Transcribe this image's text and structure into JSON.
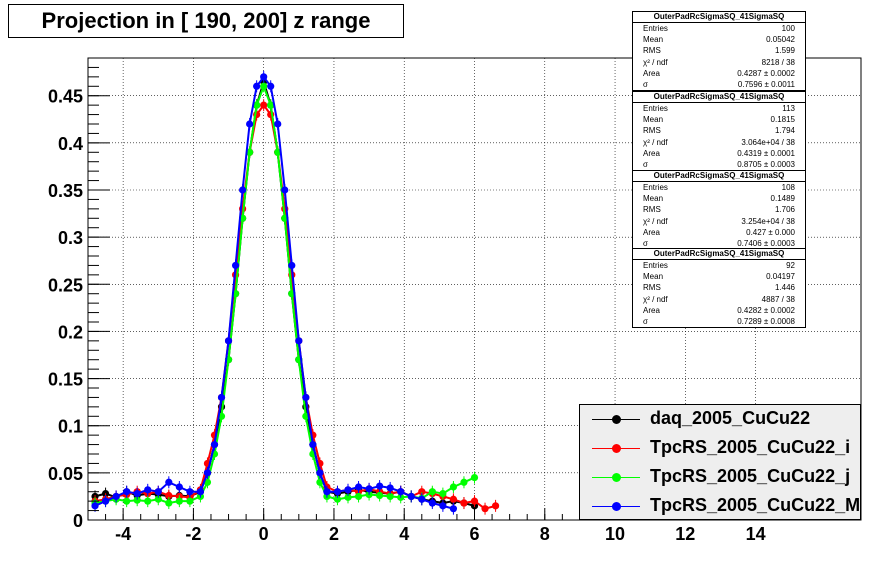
{
  "title": "Projection in [ 190, 200] z range",
  "stats": [
    {
      "name": "OuterPadRcSigmaSQ_41SigmaSQ",
      "rows": [
        [
          "Entries",
          "100"
        ],
        [
          "Mean",
          "0.05042"
        ],
        [
          "RMS",
          "1.599"
        ],
        [
          "χ² / ndf",
          "8218 / 38"
        ],
        [
          "Area",
          "0.4287 ± 0.0002"
        ],
        [
          "σ",
          "0.7596 ± 0.0011"
        ]
      ]
    },
    {
      "name": "OuterPadRcSigmaSQ_41SigmaSQ",
      "rows": [
        [
          "Entries",
          "113"
        ],
        [
          "Mean",
          "0.1815"
        ],
        [
          "RMS",
          "1.794"
        ],
        [
          "χ² / ndf",
          "3.064e+04 / 38"
        ],
        [
          "Area",
          "0.4319 ± 0.0001"
        ],
        [
          "σ",
          "0.8705 ± 0.0003"
        ]
      ]
    },
    {
      "name": "OuterPadRcSigmaSQ_41SigmaSQ",
      "rows": [
        [
          "Entries",
          "108"
        ],
        [
          "Mean",
          "0.1489"
        ],
        [
          "RMS",
          "1.706"
        ],
        [
          "χ² / ndf",
          "3.254e+04 / 38"
        ],
        [
          "Area",
          "0.427 ± 0.000"
        ],
        [
          "σ",
          "0.7406 ± 0.0003"
        ]
      ]
    },
    {
      "name": "OuterPadRcSigmaSQ_41SigmaSQ",
      "rows": [
        [
          "Entries",
          "92"
        ],
        [
          "Mean",
          "0.04197"
        ],
        [
          "RMS",
          "1.446"
        ],
        [
          "χ² / ndf",
          "4887 / 38"
        ],
        [
          "Area",
          "0.4282 ± 0.0002"
        ],
        [
          "σ",
          "0.7289 ± 0.0008"
        ]
      ]
    }
  ],
  "chart_data": {
    "type": "scatter",
    "xlim": [
      -5,
      17
    ],
    "ylim": [
      0,
      0.49
    ],
    "x_ticks": [
      -4,
      -2,
      0,
      2,
      4,
      6,
      8,
      10,
      12,
      14
    ],
    "x_tick_labels": [
      "-4",
      "-2",
      "0",
      "2",
      "4",
      "6",
      "8",
      "10",
      "12",
      "14"
    ],
    "y_ticks": [
      0,
      0.05,
      0.1,
      0.15,
      0.2,
      0.25,
      0.3,
      0.35,
      0.4,
      0.45
    ],
    "y_tick_labels": [
      "0",
      "0.05",
      "0.1",
      "0.15",
      "0.2",
      "0.25",
      "0.3",
      "0.35",
      "0.4",
      "0.45"
    ],
    "grid": true,
    "legend_position": "bottom-right",
    "series": [
      {
        "name": "daq_2005_CuCu22",
        "color": "#000000",
        "x": [
          -4.8,
          -4.5,
          -4.2,
          -3.9,
          -3.6,
          -3.3,
          -3.0,
          -2.7,
          -2.4,
          -2.1,
          -1.8,
          -1.6,
          -1.4,
          -1.2,
          -1.0,
          -0.8,
          -0.6,
          -0.4,
          -0.2,
          0.0,
          0.2,
          0.4,
          0.6,
          0.8,
          1.0,
          1.2,
          1.4,
          1.6,
          1.8,
          2.1,
          2.4,
          2.7,
          3.0,
          3.3,
          3.6,
          3.9,
          4.2,
          4.5,
          4.8,
          5.1,
          5.4,
          5.7,
          6.0
        ],
        "y": [
          0.025,
          0.028,
          0.024,
          0.03,
          0.026,
          0.028,
          0.027,
          0.025,
          0.026,
          0.025,
          0.03,
          0.05,
          0.08,
          0.12,
          0.17,
          0.24,
          0.32,
          0.39,
          0.44,
          0.465,
          0.44,
          0.39,
          0.32,
          0.24,
          0.17,
          0.12,
          0.08,
          0.05,
          0.03,
          0.028,
          0.03,
          0.032,
          0.03,
          0.029,
          0.028,
          0.03,
          0.025,
          0.022,
          0.02,
          0.018,
          0.02,
          0.018,
          0.015
        ]
      },
      {
        "name": "TpcRS_2005_CuCu22_i",
        "color": "#ff0000",
        "x": [
          -4.8,
          -4.5,
          -4.2,
          -3.9,
          -3.6,
          -3.3,
          -3.0,
          -2.7,
          -2.4,
          -2.1,
          -1.8,
          -1.6,
          -1.4,
          -1.2,
          -1.0,
          -0.8,
          -0.6,
          -0.4,
          -0.2,
          0.0,
          0.2,
          0.4,
          0.6,
          0.8,
          1.0,
          1.2,
          1.4,
          1.6,
          1.8,
          2.1,
          2.4,
          2.7,
          3.0,
          3.3,
          3.6,
          3.9,
          4.2,
          4.5,
          4.8,
          5.1,
          5.4,
          5.7,
          6.0,
          6.3,
          6.6
        ],
        "y": [
          0.02,
          0.022,
          0.025,
          0.027,
          0.03,
          0.028,
          0.03,
          0.026,
          0.025,
          0.024,
          0.032,
          0.06,
          0.09,
          0.13,
          0.19,
          0.26,
          0.33,
          0.39,
          0.43,
          0.44,
          0.43,
          0.39,
          0.33,
          0.26,
          0.19,
          0.13,
          0.09,
          0.06,
          0.035,
          0.03,
          0.032,
          0.03,
          0.033,
          0.03,
          0.028,
          0.03,
          0.025,
          0.03,
          0.028,
          0.025,
          0.022,
          0.018,
          0.02,
          0.012,
          0.015
        ]
      },
      {
        "name": "TpcRS_2005_CuCu22_j",
        "color": "#00ff00",
        "x": [
          -4.8,
          -4.5,
          -4.2,
          -3.9,
          -3.6,
          -3.3,
          -3.0,
          -2.7,
          -2.4,
          -2.1,
          -1.8,
          -1.6,
          -1.4,
          -1.2,
          -1.0,
          -0.8,
          -0.6,
          -0.4,
          -0.2,
          0.0,
          0.2,
          0.4,
          0.6,
          0.8,
          1.0,
          1.2,
          1.4,
          1.6,
          1.8,
          2.1,
          2.4,
          2.7,
          3.0,
          3.3,
          3.6,
          3.9,
          4.2,
          4.5,
          4.8,
          5.1,
          5.4,
          5.7,
          6.0
        ],
        "y": [
          0.018,
          0.02,
          0.022,
          0.02,
          0.021,
          0.02,
          0.022,
          0.018,
          0.02,
          0.02,
          0.025,
          0.04,
          0.07,
          0.11,
          0.17,
          0.24,
          0.32,
          0.39,
          0.44,
          0.46,
          0.44,
          0.39,
          0.32,
          0.24,
          0.17,
          0.11,
          0.07,
          0.04,
          0.025,
          0.022,
          0.024,
          0.025,
          0.027,
          0.026,
          0.025,
          0.024,
          0.025,
          0.023,
          0.03,
          0.028,
          0.035,
          0.04,
          0.045
        ]
      },
      {
        "name": "TpcRS_2005_CuCu22_M",
        "color": "#0000ff",
        "x": [
          -4.8,
          -4.5,
          -4.2,
          -3.9,
          -3.6,
          -3.3,
          -3.0,
          -2.7,
          -2.4,
          -2.1,
          -1.8,
          -1.6,
          -1.4,
          -1.2,
          -1.0,
          -0.8,
          -0.6,
          -0.4,
          -0.2,
          0.0,
          0.2,
          0.4,
          0.6,
          0.8,
          1.0,
          1.2,
          1.4,
          1.6,
          1.8,
          2.1,
          2.4,
          2.7,
          3.0,
          3.3,
          3.6,
          3.9,
          4.2,
          4.5,
          4.8,
          5.1,
          5.4
        ],
        "y": [
          0.015,
          0.02,
          0.025,
          0.03,
          0.028,
          0.032,
          0.03,
          0.04,
          0.035,
          0.03,
          0.03,
          0.05,
          0.08,
          0.13,
          0.19,
          0.27,
          0.35,
          0.42,
          0.46,
          0.47,
          0.46,
          0.42,
          0.35,
          0.27,
          0.19,
          0.13,
          0.08,
          0.05,
          0.03,
          0.03,
          0.032,
          0.035,
          0.033,
          0.036,
          0.034,
          0.03,
          0.025,
          0.022,
          0.018,
          0.015,
          0.012
        ]
      }
    ]
  }
}
